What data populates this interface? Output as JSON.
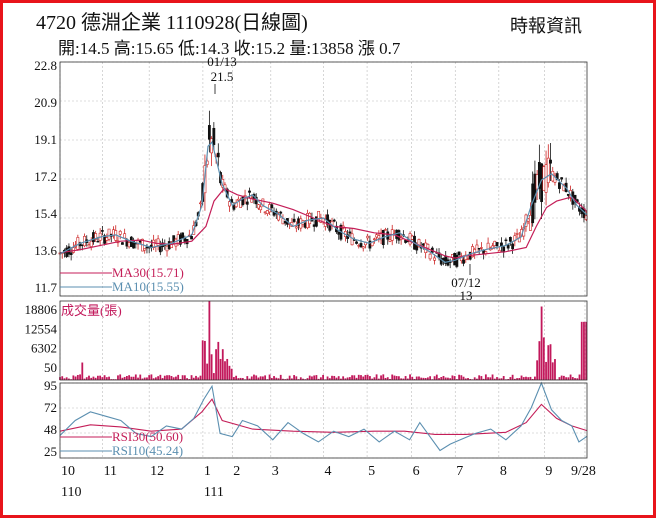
{
  "header": {
    "title": "4720  德淵企業 1110928(日線圖)",
    "source": "時報資訊",
    "ohlc": "開:14.5 高:15.65 低:14.3 收:15.2 量:13858 漲 0.7"
  },
  "colors": {
    "border": "#e8141b",
    "up": "#cc2020",
    "down": "#111111",
    "ma30": "#c41e58",
    "ma10": "#5b8fb0",
    "volume": "#c2185b",
    "rsi30": "#c41e58",
    "rsi10": "#5b8fb0"
  },
  "chart_data": [
    {
      "type": "candlestick",
      "panel": "price",
      "y_ticks": [
        "22.8",
        "20.9",
        "19.1",
        "17.2",
        "15.4",
        "13.6",
        "11.7"
      ],
      "ylim": [
        11.7,
        22.8
      ],
      "legend": [
        {
          "label": "MA30(15.71)",
          "color": "#c41e58"
        },
        {
          "label": "MA10(15.55)",
          "color": "#5b8fb0"
        }
      ],
      "annotations": [
        {
          "date": "01/13",
          "value": "21.5"
        },
        {
          "date": "07/12",
          "value": "13"
        }
      ],
      "series": [
        {
          "name": "MA30",
          "points": [
            [
              0,
              13.75
            ],
            [
              20,
              13.9
            ],
            [
              40,
              14.1
            ],
            [
              60,
              14.3
            ],
            [
              80,
              14.35
            ],
            [
              95,
              14.2
            ],
            [
              110,
              14.15
            ],
            [
              130,
              14.3
            ],
            [
              144,
              15.0
            ],
            [
              152,
              16.2
            ],
            [
              162,
              16.8
            ],
            [
              175,
              16.5
            ],
            [
              190,
              16.3
            ],
            [
              210,
              16.1
            ],
            [
              230,
              15.8
            ],
            [
              250,
              15.4
            ],
            [
              270,
              15.0
            ],
            [
              290,
              14.9
            ],
            [
              310,
              14.7
            ],
            [
              330,
              14.6
            ],
            [
              350,
              14.2
            ],
            [
              365,
              13.9
            ],
            [
              380,
              13.6
            ],
            [
              390,
              13.5
            ],
            [
              400,
              13.6
            ],
            [
              420,
              13.7
            ],
            [
              440,
              13.8
            ],
            [
              460,
              14.0
            ],
            [
              470,
              15.0
            ],
            [
              480,
              15.9
            ],
            [
              490,
              16.2
            ],
            [
              505,
              16.4
            ],
            [
              520,
              15.71
            ]
          ]
        },
        {
          "name": "MA10",
          "points": [
            [
              0,
              13.7
            ],
            [
              20,
              14.2
            ],
            [
              40,
              14.5
            ],
            [
              55,
              14.6
            ],
            [
              70,
              14.3
            ],
            [
              90,
              14.0
            ],
            [
              110,
              14.2
            ],
            [
              130,
              14.6
            ],
            [
              140,
              16.0
            ],
            [
              146,
              18.8
            ],
            [
              150,
              19.0
            ],
            [
              160,
              17.0
            ],
            [
              170,
              16.0
            ],
            [
              180,
              16.3
            ],
            [
              190,
              16.5
            ],
            [
              200,
              16.0
            ],
            [
              215,
              15.6
            ],
            [
              230,
              15.0
            ],
            [
              245,
              15.3
            ],
            [
              260,
              15.4
            ],
            [
              275,
              14.8
            ],
            [
              290,
              14.4
            ],
            [
              305,
              14.2
            ],
            [
              320,
              14.5
            ],
            [
              335,
              14.7
            ],
            [
              350,
              14.2
            ],
            [
              365,
              13.8
            ],
            [
              380,
              13.3
            ],
            [
              390,
              13.4
            ],
            [
              405,
              13.7
            ],
            [
              420,
              13.9
            ],
            [
              440,
              14.1
            ],
            [
              455,
              14.5
            ],
            [
              465,
              16.0
            ],
            [
              475,
              17.2
            ],
            [
              485,
              17.5
            ],
            [
              500,
              16.8
            ],
            [
              510,
              16.0
            ],
            [
              520,
              15.55
            ]
          ]
        }
      ]
    },
    {
      "type": "bar",
      "panel": "volume",
      "title": "成交量(張)",
      "y_ticks": [
        "18806",
        "12554",
        "6302",
        "50"
      ],
      "ylim": [
        50,
        18806
      ]
    },
    {
      "type": "line",
      "panel": "rsi",
      "y_ticks": [
        "95",
        "72",
        "48",
        "25"
      ],
      "ylim": [
        25,
        95
      ],
      "legend": [
        {
          "label": "RSI30(50.60)",
          "color": "#c41e58"
        },
        {
          "label": "RSI10(45.24)",
          "color": "#5b8fb0"
        }
      ],
      "series": [
        {
          "name": "RSI30",
          "points": [
            [
              0,
              50
            ],
            [
              30,
              56
            ],
            [
              60,
              54
            ],
            [
              90,
              50
            ],
            [
              120,
              52
            ],
            [
              140,
              68
            ],
            [
              150,
              80
            ],
            [
              160,
              60
            ],
            [
              190,
              52
            ],
            [
              230,
              50
            ],
            [
              270,
              49
            ],
            [
              310,
              50
            ],
            [
              340,
              50
            ],
            [
              370,
              47
            ],
            [
              400,
              47
            ],
            [
              440,
              49
            ],
            [
              460,
              58
            ],
            [
              475,
              75
            ],
            [
              490,
              62
            ],
            [
              505,
              55
            ],
            [
              520,
              50.6
            ]
          ]
        },
        {
          "name": "RSI10",
          "points": [
            [
              0,
              46
            ],
            [
              15,
              60
            ],
            [
              30,
              68
            ],
            [
              45,
              64
            ],
            [
              60,
              60
            ],
            [
              75,
              48
            ],
            [
              90,
              45
            ],
            [
              105,
              55
            ],
            [
              120,
              52
            ],
            [
              132,
              62
            ],
            [
              142,
              80
            ],
            [
              150,
              92
            ],
            [
              158,
              48
            ],
            [
              170,
              45
            ],
            [
              180,
              60
            ],
            [
              195,
              55
            ],
            [
              210,
              42
            ],
            [
              225,
              58
            ],
            [
              240,
              48
            ],
            [
              255,
              40
            ],
            [
              270,
              50
            ],
            [
              285,
              45
            ],
            [
              300,
              52
            ],
            [
              315,
              40
            ],
            [
              330,
              50
            ],
            [
              345,
              42
            ],
            [
              355,
              58
            ],
            [
              365,
              45
            ],
            [
              375,
              32
            ],
            [
              385,
              38
            ],
            [
              395,
              42
            ],
            [
              410,
              48
            ],
            [
              425,
              52
            ],
            [
              440,
              42
            ],
            [
              455,
              55
            ],
            [
              465,
              72
            ],
            [
              475,
              95
            ],
            [
              485,
              70
            ],
            [
              495,
              60
            ],
            [
              505,
              55
            ],
            [
              512,
              40
            ],
            [
              520,
              45.24
            ]
          ]
        }
      ]
    }
  ],
  "x_axis": [
    {
      "label": "10",
      "sub": "110",
      "idx": 0
    },
    {
      "label": "11",
      "idx": 42
    },
    {
      "label": "12",
      "idx": 88
    },
    {
      "label": "1",
      "sub": "111",
      "idx": 141
    },
    {
      "label": "2",
      "idx": 170
    },
    {
      "label": "3",
      "idx": 208
    },
    {
      "label": "4",
      "idx": 260
    },
    {
      "label": "5",
      "idx": 303
    },
    {
      "label": "6",
      "idx": 347
    },
    {
      "label": "7",
      "idx": 390
    },
    {
      "label": "8",
      "idx": 433
    },
    {
      "label": "9",
      "idx": 478
    },
    {
      "label": "9/28",
      "idx": 518
    }
  ]
}
